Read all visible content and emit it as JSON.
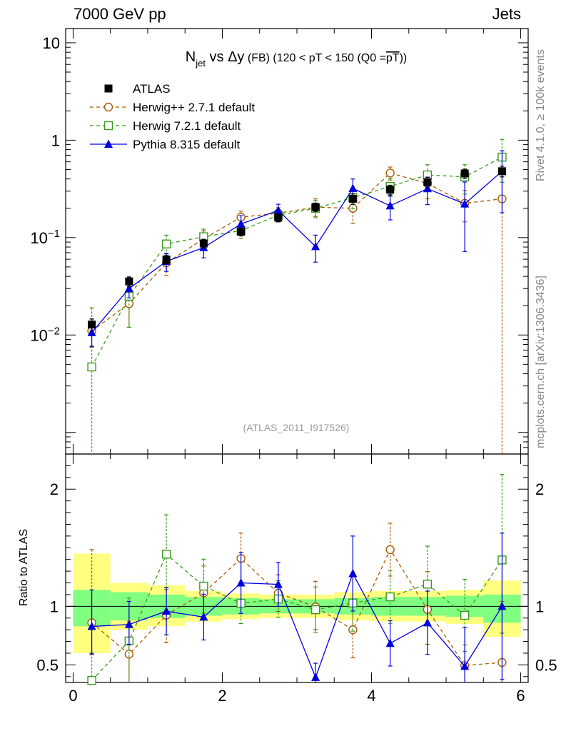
{
  "header": {
    "left": "7000 GeV pp",
    "right": "Jets"
  },
  "side_labels": {
    "top": "Rivet 4.1.0, ≥ 100k events",
    "bottom": "mcplots.cern.ch [arXiv:1306.3436]"
  },
  "chart_data": {
    "type": "scatter",
    "title": {
      "n": "N",
      "n_sub": "jet",
      "vs": " vs Δy",
      "fb": " (FB)",
      "range": " (120 < pT < 150 (Q0 =",
      "pt": "pT",
      "close": "))"
    },
    "watermark": "(ATLAS_2011_I917526)",
    "x": [
      0.25,
      0.75,
      1.25,
      1.75,
      2.25,
      2.75,
      3.25,
      3.75,
      4.25,
      4.75,
      5.25,
      5.75
    ],
    "xlim": [
      -0.1,
      6.1
    ],
    "xticks": [
      "0",
      "2",
      "4",
      "6"
    ],
    "top_ylim": [
      0.0006,
      14
    ],
    "top_yticks": [
      {
        "base": "10",
        "exp": "−2"
      },
      {
        "base": "10",
        "exp": "−1"
      },
      {
        "base": "1",
        "exp": ""
      },
      {
        "base": "10",
        "exp": ""
      }
    ],
    "ratio_ylim": [
      0.35,
      2.3
    ],
    "ratio_ylabel": "Ratio to ATLAS",
    "ratio_yticks": [
      "0.5",
      "1",
      "2"
    ],
    "legend_position": "top-left",
    "series": [
      {
        "name": "ATLAS",
        "color": "#000000",
        "marker": "filled-square",
        "values": [
          0.0128,
          0.0355,
          0.0595,
          0.087,
          0.115,
          0.16,
          0.206,
          0.25,
          0.31,
          0.37,
          0.455,
          0.48
        ],
        "err": [
          0.0018,
          0.004,
          0.006,
          0.009,
          0.011,
          0.015,
          0.02,
          0.03,
          0.035,
          0.045,
          0.05,
          0.06
        ]
      },
      {
        "name": "Herwig++ 2.7.1 default",
        "color": "#a85b00",
        "marker": "open-circle",
        "values": [
          0.011,
          0.021,
          0.055,
          0.097,
          0.162,
          0.178,
          0.205,
          0.2,
          0.46,
          0.36,
          0.225,
          0.25
        ],
        "err_lo": [
          0.0035,
          0.009,
          0.014,
          0.02,
          0.025,
          0.025,
          0.04,
          0.06,
          0.07,
          0.11,
          0.08,
          0.25
        ],
        "err_hi": [
          0.008,
          0.01,
          0.014,
          0.02,
          0.025,
          0.025,
          0.045,
          0.06,
          0.07,
          0.12,
          0.08,
          0.25
        ]
      },
      {
        "name": "Herwig 7.2.1 default",
        "color": "#3a9a1a",
        "marker": "open-square",
        "values": [
          0.0047,
          0.025,
          0.086,
          0.102,
          0.118,
          0.17,
          0.2,
          0.257,
          0.335,
          0.44,
          0.42,
          0.67
        ],
        "err_lo": [
          0.0047,
          0.013,
          0.018,
          0.02,
          0.02,
          0.025,
          0.04,
          0.06,
          0.07,
          0.12,
          0.14,
          0.3
        ],
        "err_hi": [
          0.003,
          0.013,
          0.02,
          0.02,
          0.02,
          0.025,
          0.04,
          0.06,
          0.07,
          0.12,
          0.14,
          0.35
        ]
      },
      {
        "name": "Pythia 8.315 default",
        "color": "#0000dd",
        "marker": "filled-triangle",
        "values": [
          0.0106,
          0.03,
          0.057,
          0.079,
          0.138,
          0.19,
          0.081,
          0.32,
          0.212,
          0.318,
          0.222,
          0.48
        ],
        "err_lo": [
          0.003,
          0.006,
          0.012,
          0.017,
          0.03,
          0.03,
          0.025,
          0.08,
          0.06,
          0.1,
          0.15,
          0.3
        ],
        "err_hi": [
          0.004,
          0.007,
          0.012,
          0.017,
          0.03,
          0.03,
          0.025,
          0.08,
          0.06,
          0.1,
          0.15,
          0.3
        ]
      }
    ],
    "ratio_band_yellow": [
      {
        "x0": 0.0,
        "x1": 0.5,
        "lo": 0.6,
        "hi": 1.45
      },
      {
        "x0": 0.5,
        "x1": 1.0,
        "lo": 0.8,
        "hi": 1.2
      },
      {
        "x0": 1.0,
        "x1": 1.5,
        "lo": 0.83,
        "hi": 1.18
      },
      {
        "x0": 1.5,
        "x1": 2.0,
        "lo": 0.87,
        "hi": 1.13
      },
      {
        "x0": 2.0,
        "x1": 2.5,
        "lo": 0.89,
        "hi": 1.11
      },
      {
        "x0": 2.5,
        "x1": 3.0,
        "lo": 0.9,
        "hi": 1.1
      },
      {
        "x0": 3.0,
        "x1": 3.5,
        "lo": 0.9,
        "hi": 1.1
      },
      {
        "x0": 3.5,
        "x1": 4.0,
        "lo": 0.88,
        "hi": 1.12
      },
      {
        "x0": 4.0,
        "x1": 4.5,
        "lo": 0.87,
        "hi": 1.13
      },
      {
        "x0": 4.5,
        "x1": 5.0,
        "lo": 0.87,
        "hi": 1.13
      },
      {
        "x0": 5.0,
        "x1": 5.5,
        "lo": 0.85,
        "hi": 1.14
      },
      {
        "x0": 5.5,
        "x1": 6.0,
        "lo": 0.74,
        "hi": 1.22
      }
    ],
    "ratio_band_green": [
      {
        "x0": 0.0,
        "x1": 0.5,
        "lo": 0.83,
        "hi": 1.14
      },
      {
        "x0": 0.5,
        "x1": 1.0,
        "lo": 0.88,
        "hi": 1.12
      },
      {
        "x0": 1.0,
        "x1": 1.5,
        "lo": 0.9,
        "hi": 1.1
      },
      {
        "x0": 1.5,
        "x1": 2.0,
        "lo": 0.92,
        "hi": 1.08
      },
      {
        "x0": 2.0,
        "x1": 2.5,
        "lo": 0.93,
        "hi": 1.07
      },
      {
        "x0": 2.5,
        "x1": 3.0,
        "lo": 0.94,
        "hi": 1.06
      },
      {
        "x0": 3.0,
        "x1": 3.5,
        "lo": 0.94,
        "hi": 1.06
      },
      {
        "x0": 3.5,
        "x1": 4.0,
        "lo": 0.93,
        "hi": 1.07
      },
      {
        "x0": 4.0,
        "x1": 4.5,
        "lo": 0.92,
        "hi": 1.08
      },
      {
        "x0": 4.5,
        "x1": 5.0,
        "lo": 0.92,
        "hi": 1.08
      },
      {
        "x0": 5.0,
        "x1": 5.5,
        "lo": 0.91,
        "hi": 1.09
      },
      {
        "x0": 5.5,
        "x1": 6.0,
        "lo": 0.86,
        "hi": 1.1
      }
    ]
  }
}
